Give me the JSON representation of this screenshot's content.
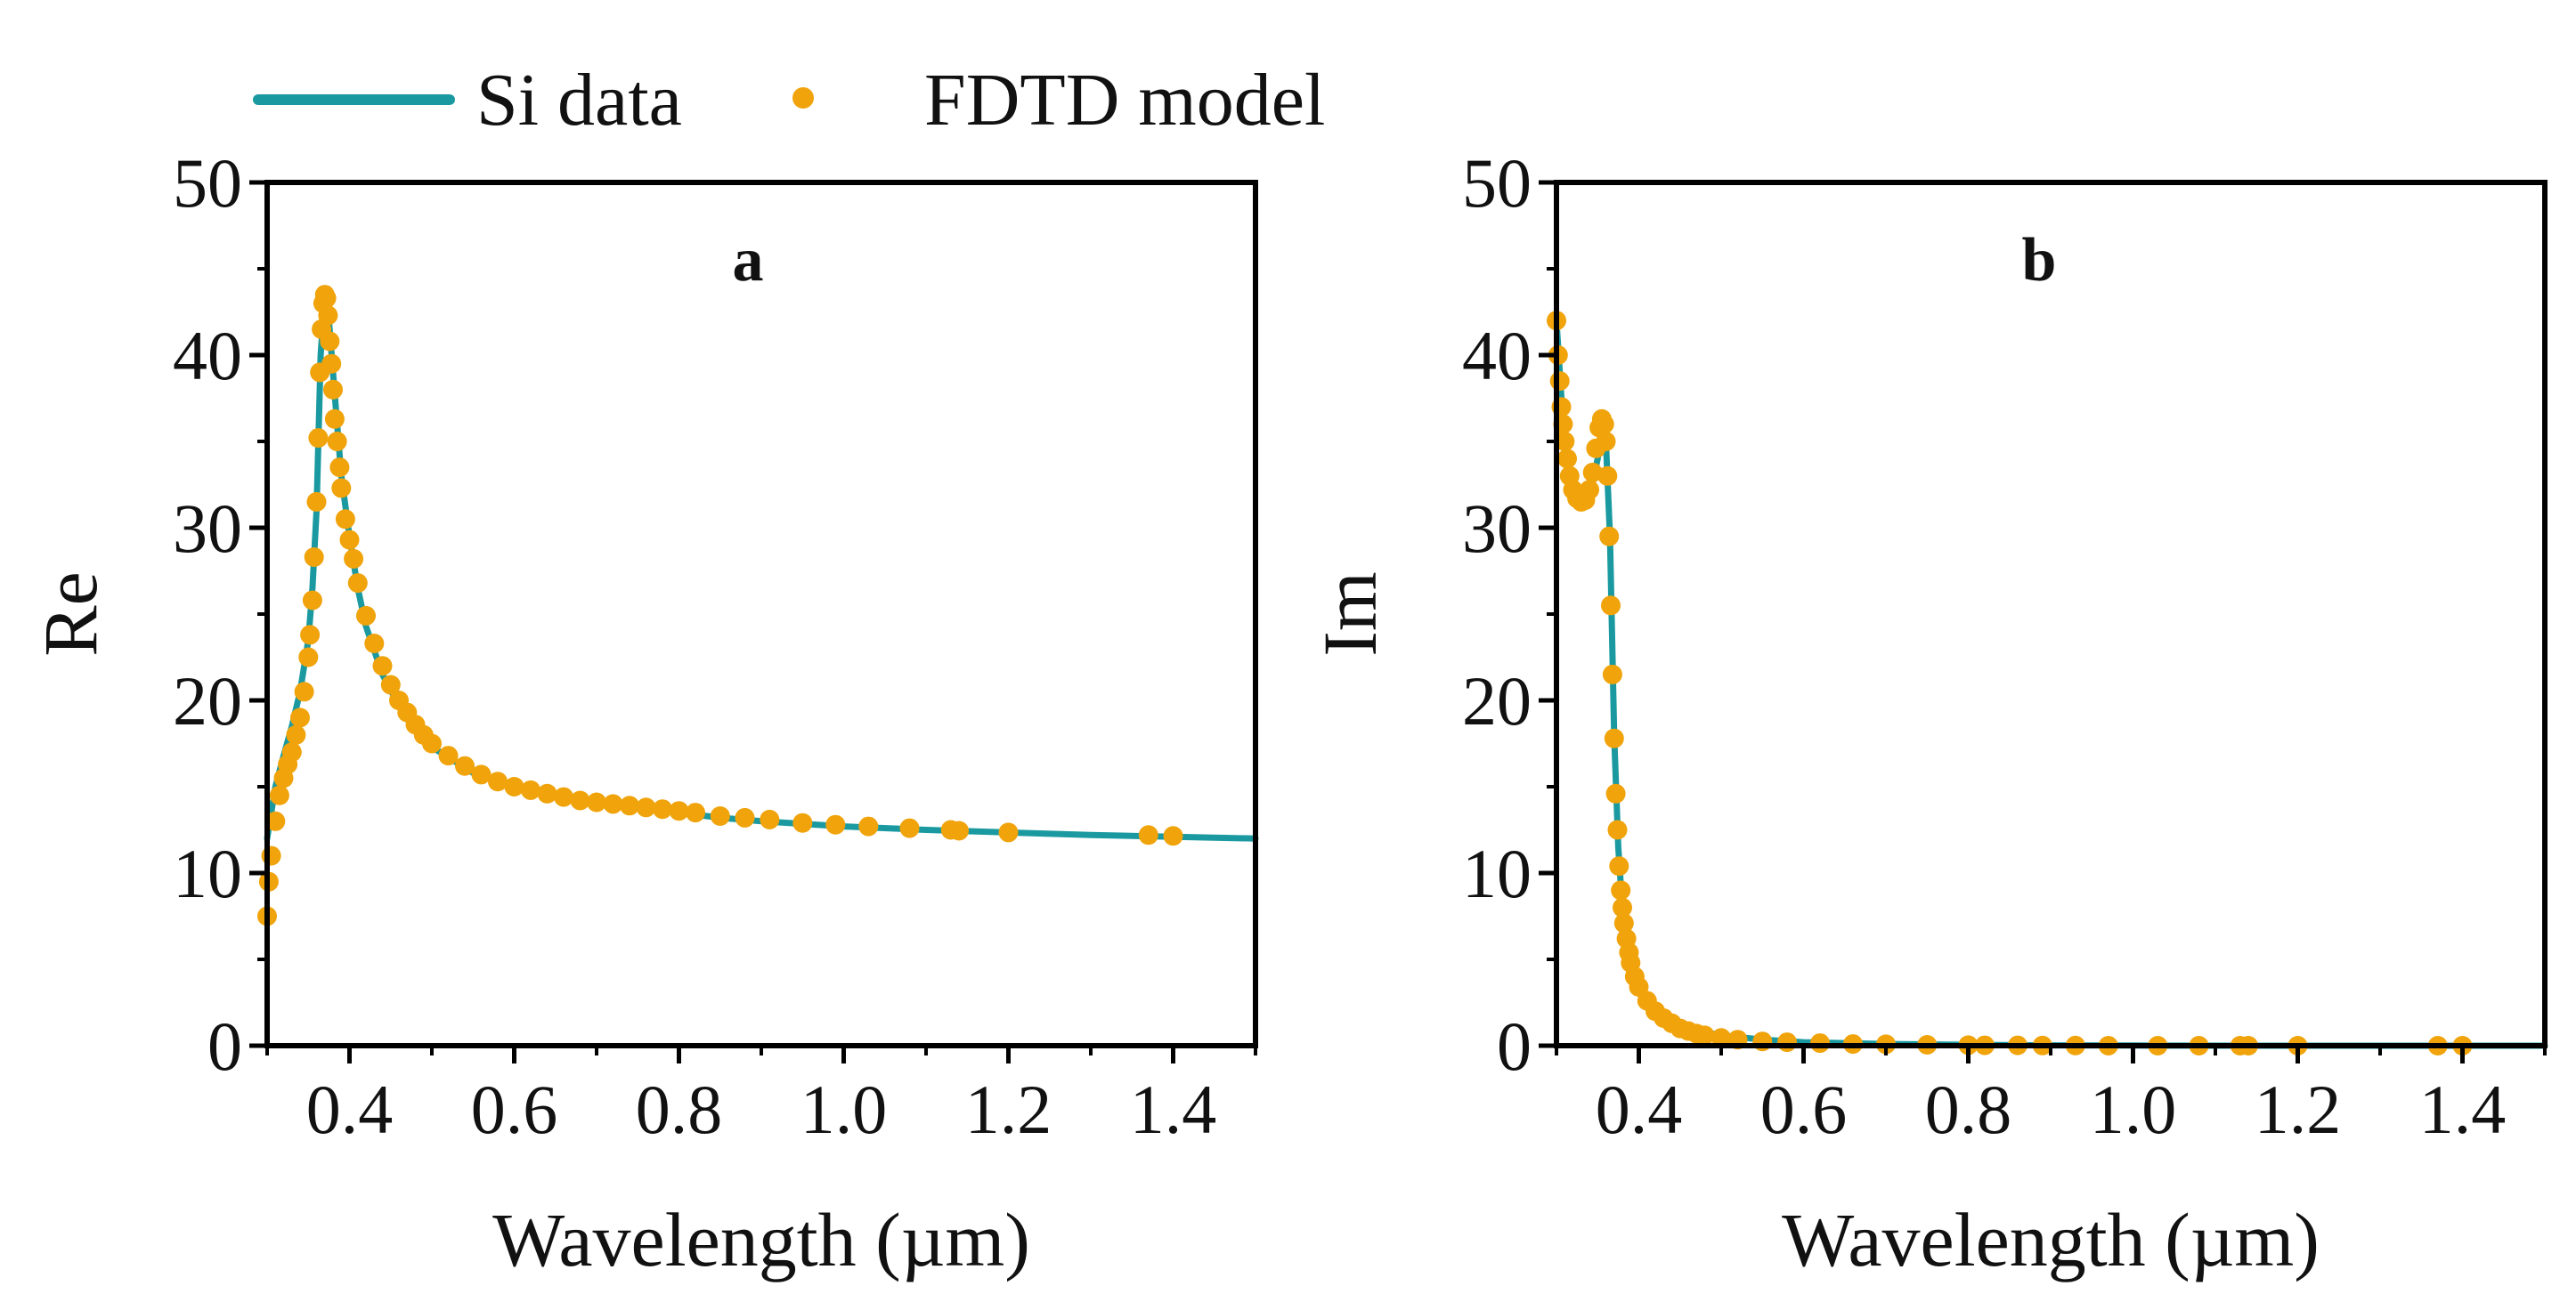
{
  "legend": {
    "items": [
      {
        "label": "Si data",
        "kind": "line"
      },
      {
        "label": "FDTD model",
        "kind": "marker"
      }
    ]
  },
  "colors": {
    "si_data": "#1a9aa0",
    "fdtd_model": "#f0a30a",
    "axis": "#000000"
  },
  "chart_data": [
    {
      "type": "line",
      "panel_label": "a",
      "title": "",
      "xlabel": "Wavelength (µm)",
      "ylabel": "Re",
      "xlim": [
        0.3,
        1.5
      ],
      "ylim": [
        0,
        50
      ],
      "grid": false,
      "legend_position": "top-left",
      "x_ticks": [
        0.4,
        0.6,
        0.8,
        1.0,
        1.2,
        1.4
      ],
      "x_tick_labels": [
        "0.4",
        "0.6",
        "0.8",
        "1.0",
        "1.2",
        "1.4"
      ],
      "y_ticks": [
        0,
        10,
        20,
        30,
        40,
        50
      ],
      "y_tick_labels": [
        "0",
        "10",
        "20",
        "30",
        "40",
        "50"
      ],
      "series": [
        {
          "name": "Si data",
          "style": "line",
          "x": [
            0.3,
            0.31,
            0.32,
            0.33,
            0.34,
            0.35,
            0.355,
            0.36,
            0.365,
            0.37,
            0.375,
            0.38,
            0.385,
            0.39,
            0.4,
            0.41,
            0.42,
            0.44,
            0.46,
            0.48,
            0.5,
            0.55,
            0.6,
            0.65,
            0.7,
            0.75,
            0.8,
            0.85,
            0.9,
            1.0,
            1.1,
            1.2,
            1.3,
            1.4,
            1.5
          ],
          "y": [
            12.0,
            15.0,
            16.8,
            18.5,
            20.5,
            23.5,
            26.5,
            31.0,
            40.0,
            43.5,
            42.0,
            39.0,
            36.0,
            33.0,
            29.5,
            26.5,
            24.3,
            21.5,
            19.7,
            18.3,
            17.3,
            15.8,
            15.0,
            14.5,
            14.1,
            13.8,
            13.5,
            13.2,
            13.0,
            12.7,
            12.5,
            12.35,
            12.2,
            12.1,
            12.0
          ]
        },
        {
          "name": "FDTD model",
          "style": "marker",
          "x": [
            0.3,
            0.302,
            0.305,
            0.31,
            0.315,
            0.32,
            0.325,
            0.33,
            0.335,
            0.34,
            0.345,
            0.35,
            0.352,
            0.355,
            0.357,
            0.36,
            0.362,
            0.364,
            0.366,
            0.368,
            0.37,
            0.372,
            0.374,
            0.376,
            0.378,
            0.38,
            0.382,
            0.385,
            0.388,
            0.39,
            0.395,
            0.4,
            0.405,
            0.41,
            0.42,
            0.43,
            0.44,
            0.45,
            0.46,
            0.47,
            0.48,
            0.49,
            0.5,
            0.52,
            0.54,
            0.56,
            0.58,
            0.6,
            0.62,
            0.64,
            0.66,
            0.68,
            0.7,
            0.72,
            0.74,
            0.76,
            0.78,
            0.8,
            0.82,
            0.85,
            0.88,
            0.91,
            0.95,
            0.99,
            1.03,
            1.08,
            1.13,
            1.14,
            1.2,
            1.37,
            1.4
          ],
          "y": [
            7.5,
            9.5,
            11.0,
            13.0,
            14.5,
            15.5,
            16.3,
            17.0,
            18.0,
            19.0,
            20.5,
            22.5,
            23.8,
            25.8,
            28.3,
            31.5,
            35.2,
            39.0,
            41.5,
            43.0,
            43.5,
            43.3,
            42.3,
            40.8,
            39.5,
            38.0,
            36.3,
            35.0,
            33.5,
            32.3,
            30.5,
            29.3,
            28.2,
            26.8,
            24.9,
            23.3,
            22.0,
            20.9,
            20.0,
            19.3,
            18.6,
            18.0,
            17.5,
            16.8,
            16.2,
            15.7,
            15.3,
            15.0,
            14.8,
            14.6,
            14.4,
            14.2,
            14.1,
            14.0,
            13.9,
            13.8,
            13.7,
            13.6,
            13.5,
            13.3,
            13.2,
            13.1,
            12.9,
            12.8,
            12.7,
            12.6,
            12.5,
            12.45,
            12.35,
            12.2,
            12.15
          ]
        }
      ]
    },
    {
      "type": "line",
      "panel_label": "b",
      "title": "",
      "xlabel": "Wavelength (µm)",
      "ylabel": "Im",
      "xlim": [
        0.3,
        1.5
      ],
      "ylim": [
        0,
        50
      ],
      "grid": false,
      "x_ticks": [
        0.4,
        0.6,
        0.8,
        1.0,
        1.2,
        1.4
      ],
      "x_tick_labels": [
        "0.4",
        "0.6",
        "0.8",
        "1.0",
        "1.2",
        "1.4"
      ],
      "y_ticks": [
        0,
        10,
        20,
        30,
        40,
        50
      ],
      "y_tick_labels": [
        "0",
        "10",
        "20",
        "30",
        "40",
        "50"
      ],
      "series": [
        {
          "name": "Si data",
          "style": "line",
          "x": [
            0.3,
            0.31,
            0.32,
            0.33,
            0.34,
            0.35,
            0.355,
            0.36,
            0.365,
            0.37,
            0.375,
            0.38,
            0.385,
            0.39,
            0.4,
            0.42,
            0.45,
            0.5,
            0.55,
            0.6,
            0.7,
            0.8,
            0.9,
            1.0,
            1.2,
            1.4,
            1.5
          ],
          "y": [
            42.0,
            34.5,
            32.5,
            31.5,
            31.8,
            34.0,
            36.0,
            35.0,
            29.5,
            18.0,
            11.5,
            8.0,
            6.0,
            4.8,
            3.6,
            2.0,
            1.1,
            0.6,
            0.35,
            0.2,
            0.1,
            0.05,
            0.02,
            0.01,
            0.0,
            0.0,
            0.0
          ]
        },
        {
          "name": "FDTD model",
          "style": "marker",
          "x": [
            0.3,
            0.302,
            0.304,
            0.306,
            0.308,
            0.31,
            0.313,
            0.316,
            0.32,
            0.325,
            0.33,
            0.335,
            0.34,
            0.344,
            0.348,
            0.352,
            0.355,
            0.358,
            0.36,
            0.362,
            0.364,
            0.366,
            0.368,
            0.37,
            0.372,
            0.374,
            0.376,
            0.378,
            0.38,
            0.382,
            0.385,
            0.388,
            0.39,
            0.395,
            0.4,
            0.41,
            0.42,
            0.43,
            0.44,
            0.45,
            0.46,
            0.47,
            0.48,
            0.5,
            0.52,
            0.55,
            0.58,
            0.62,
            0.66,
            0.7,
            0.75,
            0.8,
            0.82,
            0.86,
            0.89,
            0.93,
            0.97,
            1.03,
            1.08,
            1.13,
            1.14,
            1.2,
            1.37,
            1.4
          ],
          "y": [
            42.0,
            40.0,
            38.5,
            37.0,
            36.0,
            35.0,
            34.0,
            33.0,
            32.2,
            31.7,
            31.5,
            31.6,
            32.2,
            33.2,
            34.6,
            35.8,
            36.3,
            36.0,
            35.0,
            33.0,
            29.5,
            25.5,
            21.5,
            17.8,
            14.6,
            12.5,
            10.4,
            9.0,
            8.0,
            7.1,
            6.2,
            5.4,
            4.8,
            4.0,
            3.4,
            2.6,
            2.0,
            1.6,
            1.3,
            1.0,
            0.85,
            0.7,
            0.6,
            0.45,
            0.35,
            0.25,
            0.2,
            0.15,
            0.1,
            0.08,
            0.05,
            0.03,
            0.02,
            0.02,
            0.01,
            0.01,
            0.0,
            0.0,
            0.0,
            0.0,
            0.0,
            0.0,
            0.0,
            0.0
          ]
        }
      ]
    }
  ]
}
